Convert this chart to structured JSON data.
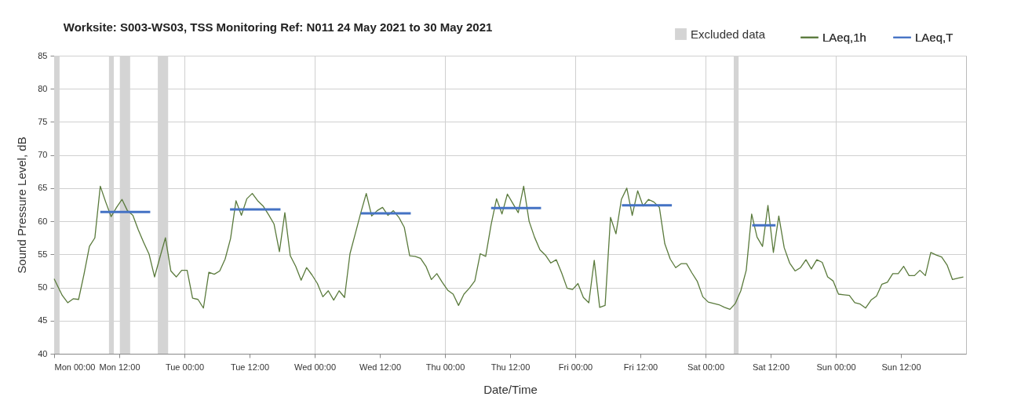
{
  "chart_data": {
    "type": "line",
    "title": "Worksite: S003-WS03, TSS   Monitoring Ref: N011      24 May 2021 to 30 May 2021",
    "xlabel": "Date/Time",
    "ylabel": "Sound Pressure Level, dB",
    "xlim": [
      "2021-05-24T00:00",
      "2021-05-31T00:00"
    ],
    "ylim": [
      40,
      85
    ],
    "xticks": [
      {
        "value": "2021-05-24T00:00",
        "label": "Mon 00:00"
      },
      {
        "value": "2021-05-24T12:00",
        "label": "Mon 12:00"
      },
      {
        "value": "2021-05-25T00:00",
        "label": "Tue 00:00"
      },
      {
        "value": "2021-05-25T12:00",
        "label": "Tue 12:00"
      },
      {
        "value": "2021-05-26T00:00",
        "label": "Wed 00:00"
      },
      {
        "value": "2021-05-26T12:00",
        "label": "Wed 12:00"
      },
      {
        "value": "2021-05-27T00:00",
        "label": "Thu 00:00"
      },
      {
        "value": "2021-05-27T12:00",
        "label": "Thu 12:00"
      },
      {
        "value": "2021-05-28T00:00",
        "label": "Fri 00:00"
      },
      {
        "value": "2021-05-28T12:00",
        "label": "Fri 12:00"
      },
      {
        "value": "2021-05-29T00:00",
        "label": "Sat 00:00"
      },
      {
        "value": "2021-05-29T12:00",
        "label": "Sat 12:00"
      },
      {
        "value": "2021-05-30T00:00",
        "label": "Sun 00:00"
      },
      {
        "value": "2021-05-30T12:00",
        "label": "Sun 12:00"
      }
    ],
    "yticks": [
      40,
      45,
      50,
      55,
      60,
      65,
      70,
      75,
      80,
      85
    ],
    "grid": true,
    "legend": "top right",
    "line_style": "solid",
    "marker": "none",
    "bands": [
      {
        "axis": "x",
        "from": "2021-05-24T00:00",
        "to": "2021-05-24T01:00",
        "label": "Excluded data",
        "color": "#d4d4d4"
      },
      {
        "axis": "x",
        "from": "2021-05-24T10:06",
        "to": "2021-05-24T11:00",
        "color": "#d4d4d4"
      },
      {
        "axis": "x",
        "from": "2021-05-24T12:06",
        "to": "2021-05-24T14:00",
        "color": "#d4d4d4"
      },
      {
        "axis": "x",
        "from": "2021-05-24T19:06",
        "to": "2021-05-24T21:00",
        "color": "#d4d4d4"
      },
      {
        "axis": "x",
        "from": "2021-05-29T05:12",
        "to": "2021-05-29T06:06",
        "color": "#d4d4d4"
      }
    ],
    "series": [
      {
        "name": "LAeq,1h",
        "color": "#5a7a3c",
        "x": [
          "2021-05-24T00:00",
          "2021-05-24T01:30",
          "2021-05-24T02:30",
          "2021-05-24T03:30",
          "2021-05-24T04:30",
          "2021-05-24T05:30",
          "2021-05-24T06:30",
          "2021-05-24T07:30",
          "2021-05-24T08:30",
          "2021-05-24T09:30",
          "2021-05-24T10:30",
          "2021-05-24T11:30",
          "2021-05-24T12:30",
          "2021-05-24T13:30",
          "2021-05-24T14:30",
          "2021-05-24T15:30",
          "2021-05-24T16:30",
          "2021-05-24T17:30",
          "2021-05-24T18:30",
          "2021-05-24T19:30",
          "2021-05-24T20:30",
          "2021-05-24T21:30",
          "2021-05-24T22:30",
          "2021-05-24T23:30",
          "2021-05-25T00:30",
          "2021-05-25T01:30",
          "2021-05-25T02:30",
          "2021-05-25T03:30",
          "2021-05-25T04:30",
          "2021-05-25T05:30",
          "2021-05-25T06:30",
          "2021-05-25T07:30",
          "2021-05-25T08:30",
          "2021-05-25T09:30",
          "2021-05-25T10:30",
          "2021-05-25T11:30",
          "2021-05-25T12:30",
          "2021-05-25T13:30",
          "2021-05-25T14:30",
          "2021-05-25T15:30",
          "2021-05-25T16:30",
          "2021-05-25T17:30",
          "2021-05-25T18:30",
          "2021-05-25T19:30",
          "2021-05-25T20:30",
          "2021-05-25T21:30",
          "2021-05-25T22:30",
          "2021-05-25T23:30",
          "2021-05-26T00:30",
          "2021-05-26T01:30",
          "2021-05-26T02:30",
          "2021-05-26T03:30",
          "2021-05-26T04:30",
          "2021-05-26T05:30",
          "2021-05-26T06:30",
          "2021-05-26T07:30",
          "2021-05-26T08:30",
          "2021-05-26T09:30",
          "2021-05-26T10:30",
          "2021-05-26T11:30",
          "2021-05-26T12:30",
          "2021-05-26T13:30",
          "2021-05-26T14:30",
          "2021-05-26T15:30",
          "2021-05-26T16:30",
          "2021-05-26T17:30",
          "2021-05-26T18:30",
          "2021-05-26T19:30",
          "2021-05-26T20:30",
          "2021-05-26T21:30",
          "2021-05-26T22:30",
          "2021-05-26T23:30",
          "2021-05-27T00:30",
          "2021-05-27T01:30",
          "2021-05-27T02:30",
          "2021-05-27T03:30",
          "2021-05-27T04:30",
          "2021-05-27T05:30",
          "2021-05-27T06:30",
          "2021-05-27T07:30",
          "2021-05-27T08:30",
          "2021-05-27T09:30",
          "2021-05-27T10:30",
          "2021-05-27T11:30",
          "2021-05-27T12:30",
          "2021-05-27T13:30",
          "2021-05-27T14:30",
          "2021-05-27T15:30",
          "2021-05-27T16:30",
          "2021-05-27T17:30",
          "2021-05-27T18:30",
          "2021-05-27T19:30",
          "2021-05-27T20:30",
          "2021-05-27T21:30",
          "2021-05-27T22:30",
          "2021-05-27T23:30",
          "2021-05-28T00:30",
          "2021-05-28T01:30",
          "2021-05-28T02:30",
          "2021-05-28T03:30",
          "2021-05-28T04:30",
          "2021-05-28T05:30",
          "2021-05-28T06:30",
          "2021-05-28T07:30",
          "2021-05-28T08:30",
          "2021-05-28T09:30",
          "2021-05-28T10:30",
          "2021-05-28T11:30",
          "2021-05-28T12:30",
          "2021-05-28T13:30",
          "2021-05-28T14:30",
          "2021-05-28T15:30",
          "2021-05-28T16:30",
          "2021-05-28T17:30",
          "2021-05-28T18:30",
          "2021-05-28T19:30",
          "2021-05-28T20:30",
          "2021-05-28T21:30",
          "2021-05-28T22:30",
          "2021-05-28T23:30",
          "2021-05-29T00:30",
          "2021-05-29T01:30",
          "2021-05-29T02:30",
          "2021-05-29T03:30",
          "2021-05-29T04:30",
          "2021-05-29T05:30",
          "2021-05-29T06:30",
          "2021-05-29T07:30",
          "2021-05-29T08:30",
          "2021-05-29T09:30",
          "2021-05-29T10:30",
          "2021-05-29T11:30",
          "2021-05-29T12:30",
          "2021-05-29T13:30",
          "2021-05-29T14:30",
          "2021-05-29T15:30",
          "2021-05-29T16:30",
          "2021-05-29T17:30",
          "2021-05-29T18:30",
          "2021-05-29T19:30",
          "2021-05-29T20:30",
          "2021-05-29T21:30",
          "2021-05-29T22:30",
          "2021-05-29T23:30",
          "2021-05-30T00:30",
          "2021-05-30T01:30",
          "2021-05-30T02:30",
          "2021-05-30T03:30",
          "2021-05-30T04:30",
          "2021-05-30T05:30",
          "2021-05-30T06:30",
          "2021-05-30T07:30",
          "2021-05-30T08:30",
          "2021-05-30T09:30",
          "2021-05-30T10:30",
          "2021-05-30T11:30",
          "2021-05-30T12:30",
          "2021-05-30T13:30",
          "2021-05-30T14:30",
          "2021-05-30T15:30",
          "2021-05-30T16:30",
          "2021-05-30T17:30",
          "2021-05-30T18:30",
          "2021-05-30T19:30",
          "2021-05-30T20:30",
          "2021-05-30T21:30",
          "2021-05-30T22:30",
          "2021-05-30T23:30"
        ],
        "values": [
          51.3,
          48.8,
          47.7,
          48.3,
          48.2,
          52,
          56.2,
          57.5,
          65.3,
          62.9,
          60.7,
          62.1,
          63.3,
          61.6,
          60.9,
          58.7,
          56.8,
          55,
          51.6,
          54.6,
          57.5,
          52.5,
          51.6,
          52.6,
          52.6,
          48.4,
          48.2,
          46.9,
          52.3,
          52,
          52.5,
          54.3,
          57.4,
          63.1,
          60.9,
          63.4,
          64.2,
          63.1,
          62.3,
          61,
          59.6,
          55.4,
          61.3,
          54.8,
          53.2,
          51.1,
          53,
          51.9,
          50.6,
          48.6,
          49.5,
          48.1,
          49.5,
          48.5,
          55.1,
          58.2,
          61.3,
          64.2,
          60.8,
          61.6,
          62.1,
          60.9,
          61.6,
          60.6,
          59.1,
          54.8,
          54.7,
          54.4,
          53.2,
          51.2,
          52.1,
          50.8,
          49.6,
          49,
          47.3,
          49,
          49.9,
          51,
          55.1,
          54.7,
          59.5,
          63.4,
          61.1,
          64.1,
          62.7,
          61.3,
          65.3,
          60,
          57.6,
          55.7,
          54.9,
          53.7,
          54.2,
          52.2,
          49.9,
          49.7,
          50.6,
          48.5,
          47.7,
          54.1,
          47,
          47.3,
          60.6,
          58.1,
          63.3,
          65,
          60.9,
          64.6,
          62.3,
          63.3,
          62.9,
          62.1,
          56.6,
          54.3,
          53,
          53.6,
          53.6,
          52.2,
          50.9,
          48.6,
          47.8,
          47.6,
          47.4,
          47,
          46.7,
          47.6,
          49.5,
          52.6,
          61.1,
          57.6,
          56.2,
          62.4,
          55.3,
          60.8,
          56,
          53.7,
          52.5,
          53,
          54.2,
          52.8,
          54.2,
          53.8,
          51.6,
          51,
          49,
          48.9,
          48.8,
          47.7,
          47.5,
          46.9,
          48.1,
          48.7,
          50.5,
          50.8,
          52.1,
          52.1,
          53.2,
          51.8,
          51.8,
          52.6,
          51.8,
          55.3,
          54.9,
          54.6,
          53.4,
          51.2,
          51.4,
          51.6
        ]
      },
      {
        "name": "LAeq,T",
        "color": "#4472c4",
        "x": [
          "2021-05-24T08:30",
          "2021-05-24T17:42",
          "2021-05-25T01:00",
          "2021-05-25T08:24",
          "2021-05-25T17:42",
          "2021-05-26T01:00",
          "2021-05-26T08:30",
          "2021-05-26T17:42",
          "2021-05-27T01:00",
          "2021-05-27T08:30",
          "2021-05-27T17:42",
          "2021-05-28T01:00",
          "2021-05-28T08:36",
          "2021-05-28T17:48",
          "2021-05-29T01:00",
          "2021-05-29T08:36",
          "2021-05-29T12:54"
        ],
        "values": [
          61.4,
          61.4,
          null,
          61.8,
          61.8,
          null,
          61.2,
          61.2,
          null,
          62,
          62,
          null,
          62.4,
          62.4,
          null,
          59.4,
          59.4
        ]
      }
    ]
  }
}
